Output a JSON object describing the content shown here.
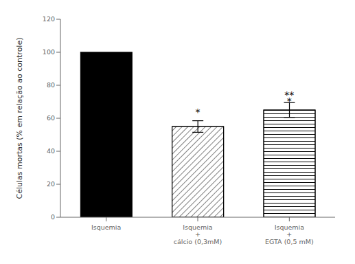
{
  "chart_data": {
    "type": "bar",
    "categories": [
      "Isquemia",
      "Isquemia\n+\ncálcio (0,3mM)",
      "Isquemia\n+\nEGTA (0,5 mM)"
    ],
    "values": [
      100,
      55,
      65
    ],
    "errors": [
      0,
      3.5,
      4.5
    ],
    "colors": [
      "black",
      "white",
      "white"
    ],
    "ylabel": "Células mortas (% em relação ao controle)",
    "ylim": [
      0,
      120
    ],
    "yticks": [
      0,
      20,
      40,
      60,
      80,
      100,
      120
    ],
    "annotations": [
      {
        "text": "*",
        "x": "Isquemia\n+\ncálcio (0,3mM)",
        "y": 61.5
      },
      {
        "text": "**",
        "x": "Isquemia\n+\nEGTA (0,5 mM)",
        "y": 72.0
      },
      {
        "text": "*",
        "x": "Isquemia\n+\nEGTA (0,5 mM)",
        "y": 68.5
      }
    ]
  }
}
